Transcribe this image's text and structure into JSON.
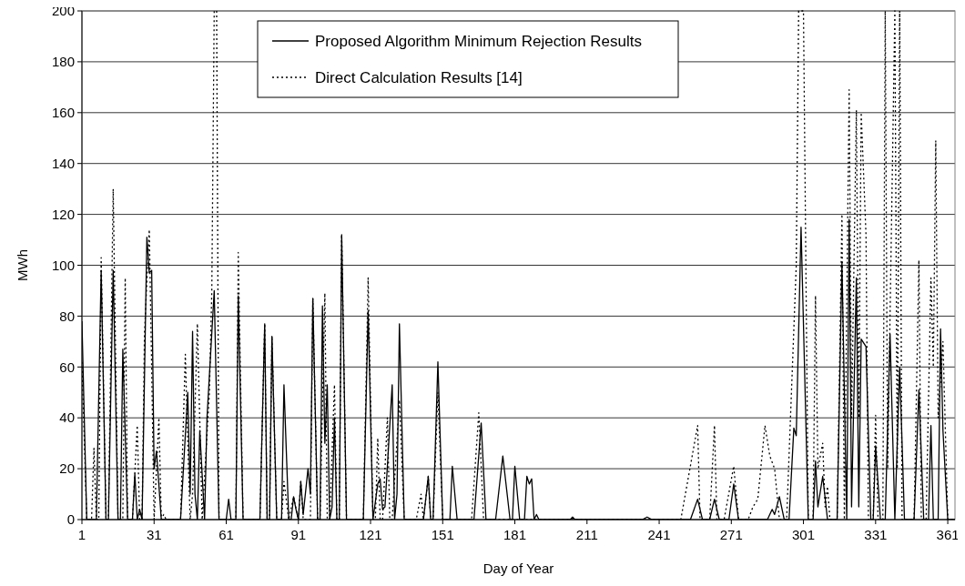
{
  "chart_data": {
    "type": "line",
    "xlabel": "Day of Year",
    "ylabel": "MWh",
    "xlim": [
      1,
      364
    ],
    "xticks": [
      1,
      31,
      61,
      91,
      121,
      151,
      181,
      211,
      241,
      271,
      301,
      331,
      361
    ],
    "ylim": [
      0,
      200
    ],
    "yticks": [
      0,
      20,
      40,
      60,
      80,
      100,
      120,
      140,
      160,
      180,
      200
    ],
    "grid": "y",
    "legend": "top",
    "marker": "none",
    "series": [
      {
        "name": "Proposed Algorithm Minimum Rejection Results",
        "color": "#000000",
        "line_style": "solid",
        "x": [
          1,
          3,
          7,
          9,
          11,
          12,
          14,
          16,
          17,
          18,
          20,
          22,
          23,
          24,
          25,
          26,
          28,
          29,
          30,
          31,
          32,
          34,
          42,
          45,
          46,
          47,
          48,
          49,
          50,
          52,
          53,
          56,
          58,
          61,
          62,
          63,
          65,
          66,
          68,
          75,
          77,
          78,
          79,
          80,
          82,
          84,
          85,
          87,
          88,
          89,
          90,
          91,
          92,
          93,
          95,
          96,
          97,
          99,
          100,
          101,
          102,
          103,
          104,
          105,
          106,
          107,
          108,
          109,
          111,
          118,
          120,
          122,
          124,
          125,
          126,
          127,
          130,
          131,
          132,
          133,
          135,
          143,
          145,
          146,
          147,
          149,
          151,
          154,
          155,
          157,
          164,
          167,
          169,
          173,
          176,
          179,
          180,
          181,
          183,
          185,
          186,
          187,
          188,
          189,
          190,
          191,
          204,
          205,
          206,
          234,
          236,
          238,
          254,
          257,
          259,
          262,
          264,
          266,
          270,
          272,
          274,
          286,
          288,
          289,
          291,
          293,
          295,
          297,
          298,
          300,
          303,
          305,
          306,
          307,
          309,
          311,
          315,
          317,
          319,
          320,
          321,
          323,
          324,
          325,
          327,
          329,
          330,
          331,
          333,
          335,
          337,
          339,
          341,
          343,
          347,
          349,
          351,
          353,
          354,
          355,
          357,
          358,
          359,
          361,
          364
        ],
        "values": [
          78,
          0,
          0,
          98,
          0,
          0,
          98,
          0,
          0,
          67,
          0,
          0,
          18,
          0,
          4,
          0,
          111,
          97,
          98,
          20,
          27,
          0,
          0,
          50,
          10,
          74,
          10,
          0,
          35,
          0,
          40,
          90,
          0,
          0,
          8,
          0,
          0,
          88,
          0,
          0,
          77,
          0,
          0,
          72,
          0,
          0,
          53,
          0,
          0,
          9,
          4,
          0,
          15,
          2,
          20,
          10,
          87,
          0,
          0,
          84,
          30,
          53,
          0,
          5,
          40,
          0,
          0,
          112,
          0,
          0,
          82,
          0,
          14,
          16,
          4,
          5,
          53,
          0,
          10,
          77,
          0,
          0,
          17,
          0,
          0,
          62,
          0,
          0,
          21,
          0,
          0,
          38,
          0,
          0,
          25,
          0,
          0,
          21,
          0,
          0,
          17,
          14,
          16,
          0,
          2,
          0,
          0,
          1,
          0,
          0,
          1,
          0,
          0,
          8,
          0,
          0,
          8,
          0,
          0,
          14,
          0,
          0,
          4,
          2,
          9,
          0,
          0,
          36,
          33,
          115,
          0,
          0,
          23,
          5,
          17,
          0,
          0,
          101,
          0,
          118,
          5,
          95,
          5,
          71,
          68,
          0,
          0,
          29,
          0,
          0,
          73,
          0,
          60,
          0,
          0,
          51,
          0,
          0,
          37,
          0,
          0,
          75,
          35,
          0,
          0
        ]
      },
      {
        "name": "Direct Calculation Results [14]",
        "color": "#000000",
        "line_style": "dotted",
        "x": [
          1,
          3,
          5,
          6,
          7,
          8,
          9,
          11,
          12,
          14,
          16,
          18,
          19,
          20,
          22,
          24,
          25,
          26,
          27,
          29,
          30,
          31,
          33,
          34,
          35,
          36,
          42,
          44,
          45,
          46,
          47,
          49,
          51,
          54,
          55,
          56,
          57,
          58,
          61,
          65,
          66,
          68,
          75,
          77,
          78,
          79,
          80,
          82,
          84,
          85,
          87,
          89,
          91,
          92,
          93,
          96,
          97,
          99,
          100,
          102,
          103,
          104,
          106,
          107,
          108,
          109,
          111,
          118,
          120,
          122,
          123,
          124,
          125,
          126,
          128,
          129,
          130,
          133,
          135,
          140,
          142,
          143,
          145,
          146,
          147,
          149,
          151,
          163,
          166,
          168,
          250,
          257,
          258,
          262,
          264,
          265,
          268,
          272,
          274,
          278,
          280,
          282,
          285,
          287,
          289,
          290,
          291,
          294,
          298,
          299,
          301,
          303,
          305,
          306,
          307,
          309,
          310,
          311,
          312,
          315,
          317,
          318,
          320,
          321,
          323,
          324,
          325,
          327,
          328,
          330,
          331,
          332,
          334,
          335,
          336,
          339,
          340,
          341,
          342,
          347,
          349,
          350,
          352,
          354,
          355,
          356,
          357,
          359,
          361,
          364
        ],
        "values": [
          62,
          0,
          0,
          28,
          0,
          0,
          103,
          0,
          0,
          130,
          0,
          0,
          95,
          0,
          0,
          37,
          0,
          0,
          73,
          114,
          60,
          0,
          40,
          0,
          2,
          0,
          0,
          65,
          30,
          0,
          10,
          77,
          0,
          50,
          90,
          200,
          200,
          0,
          0,
          0,
          105,
          0,
          0,
          77,
          0,
          0,
          72,
          0,
          0,
          15,
          0,
          9,
          0,
          15,
          0,
          0,
          87,
          0,
          0,
          89,
          0,
          0,
          53,
          0,
          0,
          112,
          0,
          0,
          95,
          0,
          0,
          32,
          0,
          0,
          40,
          0,
          0,
          47,
          0,
          0,
          10,
          0,
          17,
          0,
          0,
          50,
          0,
          0,
          42,
          0,
          0,
          37,
          0,
          0,
          37,
          0,
          0,
          21,
          0,
          0,
          5,
          8,
          37,
          25,
          20,
          10,
          0,
          0,
          100,
          200,
          200,
          0,
          0,
          88,
          20,
          30,
          5,
          13,
          0,
          0,
          120,
          0,
          169,
          40,
          161,
          40,
          160,
          112,
          0,
          0,
          41,
          0,
          0,
          200,
          20,
          200,
          20,
          200,
          0,
          0,
          102,
          0,
          0,
          95,
          60,
          149,
          40,
          70,
          0,
          0
        ]
      }
    ]
  }
}
